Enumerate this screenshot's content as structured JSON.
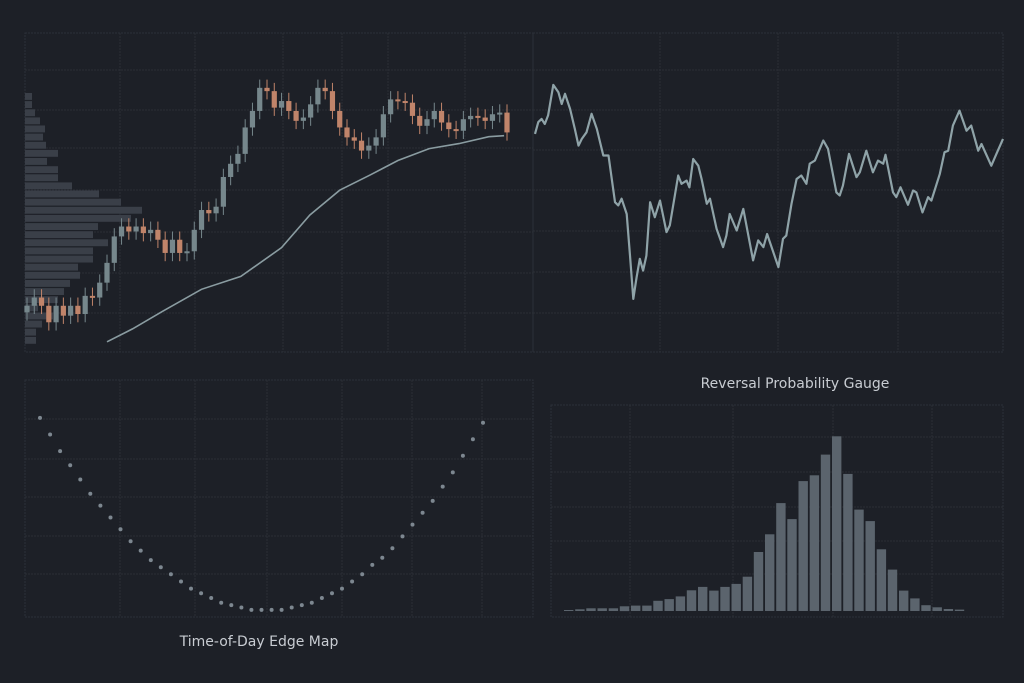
{
  "colors": {
    "background": "#1d2027",
    "grid": "#2a2e36",
    "up": "#76878c",
    "down": "#c0846a",
    "ma": "#8a9ca1",
    "profile": "#3a3f48",
    "line": "#8fa3a8",
    "hist": "#5b646d",
    "dots": "#7d8790",
    "text": "#c8ccd2"
  },
  "chart_data": [
    {
      "type": "candlestick",
      "title": "",
      "ylim": [
        0,
        96
      ],
      "candles": {
        "first_open": 12,
        "wick": 2.5,
        "close": [
          14,
          16.5,
          14,
          9,
          14,
          11,
          14,
          11.5,
          17,
          16.5,
          21,
          27,
          35,
          38,
          36.5,
          38,
          36,
          37,
          34,
          30,
          34,
          30,
          30.5,
          37,
          43,
          42,
          44,
          53,
          57,
          60,
          68,
          73,
          80,
          79,
          74,
          76,
          73,
          70,
          71,
          75,
          80,
          79,
          73,
          68,
          65,
          64,
          61,
          62.5,
          65,
          72,
          76.5,
          76,
          75.5,
          71.5,
          68.5,
          70.5,
          73,
          69.5,
          67.5,
          67,
          70.5,
          71.5,
          71,
          70,
          72,
          72.5,
          66.5
        ]
      },
      "moving_average": [
        [
          11,
          3.1
        ],
        [
          14.5,
          7
        ],
        [
          18.7,
          12.4
        ],
        [
          24,
          19
        ],
        [
          29.4,
          22.9
        ],
        [
          35,
          31.6
        ],
        [
          38.9,
          41.5
        ],
        [
          43,
          49
        ],
        [
          47.1,
          53.5
        ],
        [
          51,
          58
        ],
        [
          55.3,
          61.6
        ],
        [
          59.4,
          63.1
        ],
        [
          63.5,
          65.2
        ],
        [
          65.6,
          65.5
        ]
      ],
      "volume_profile": [
        7,
        7,
        10,
        15,
        20,
        18,
        21,
        33,
        22,
        33,
        33,
        47,
        74,
        96,
        117,
        106,
        73,
        68,
        83,
        68,
        68,
        53,
        55,
        45,
        39,
        33,
        13,
        28,
        17,
        11,
        11
      ]
    },
    {
      "type": "line",
      "title": "Reversal Probability Gauge",
      "xlim": [
        0,
        100
      ],
      "ylim": [
        0,
        100
      ],
      "points": [
        [
          0,
          68.6
        ],
        [
          0.7,
          72.3
        ],
        [
          1.4,
          73.3
        ],
        [
          2.1,
          71.7
        ],
        [
          2.8,
          74.4
        ],
        [
          3.9,
          84
        ],
        [
          5,
          81.7
        ],
        [
          5.7,
          78
        ],
        [
          6.4,
          81.2
        ],
        [
          7.5,
          76.4
        ],
        [
          8.5,
          70.2
        ],
        [
          9.3,
          64.9
        ],
        [
          10,
          67
        ],
        [
          11,
          69.1
        ],
        [
          12.1,
          74.9
        ],
        [
          13.2,
          70.2
        ],
        [
          14.6,
          61.8
        ],
        [
          15.7,
          61.8
        ],
        [
          17.1,
          47.1
        ],
        [
          17.8,
          46.1
        ],
        [
          18.5,
          48.2
        ],
        [
          19.6,
          43.4
        ],
        [
          20.3,
          30.3
        ],
        [
          21,
          16.7
        ],
        [
          21.7,
          23.5
        ],
        [
          22.4,
          29.3
        ],
        [
          23.1,
          25.6
        ],
        [
          23.8,
          30.3
        ],
        [
          24.6,
          47.1
        ],
        [
          25.6,
          42.4
        ],
        [
          26.7,
          47.6
        ],
        [
          28.1,
          37.7
        ],
        [
          28.8,
          39.8
        ],
        [
          30.6,
          55.5
        ],
        [
          31.3,
          52.9
        ],
        [
          32.4,
          53.9
        ],
        [
          33,
          51.8
        ],
        [
          33.8,
          60.7
        ],
        [
          34.9,
          58.6
        ],
        [
          35.6,
          54.4
        ],
        [
          36.7,
          46.6
        ],
        [
          37.4,
          48.2
        ],
        [
          38.8,
          38.7
        ],
        [
          40.2,
          33
        ],
        [
          40.9,
          36.6
        ],
        [
          41.6,
          43.4
        ],
        [
          43.1,
          38.2
        ],
        [
          44.5,
          45
        ],
        [
          46.6,
          28.8
        ],
        [
          47.7,
          35.1
        ],
        [
          48.8,
          33
        ],
        [
          49.6,
          37.1
        ],
        [
          52,
          26.7
        ],
        [
          53,
          35.6
        ],
        [
          53.7,
          36.6
        ],
        [
          54.8,
          46.6
        ],
        [
          55.9,
          54.4
        ],
        [
          56.9,
          55.5
        ],
        [
          58,
          52.9
        ],
        [
          58.7,
          59.2
        ],
        [
          59.8,
          60.2
        ],
        [
          61.6,
          66.5
        ],
        [
          62.6,
          63.9
        ],
        [
          64.4,
          50.2
        ],
        [
          65.1,
          49.2
        ],
        [
          65.8,
          52.3
        ],
        [
          67.1,
          62.3
        ],
        [
          68.7,
          55
        ],
        [
          69.4,
          56.5
        ],
        [
          70.8,
          63.3
        ],
        [
          72.2,
          56.5
        ],
        [
          73.3,
          60.2
        ],
        [
          74.4,
          59.2
        ],
        [
          74.9,
          62
        ],
        [
          76.5,
          50.2
        ],
        [
          77.2,
          48.7
        ],
        [
          78.1,
          51.8
        ],
        [
          79.7,
          46.3
        ],
        [
          80.8,
          50.8
        ],
        [
          81.5,
          50.2
        ],
        [
          82.8,
          43.9
        ],
        [
          84,
          48.7
        ],
        [
          84.7,
          47.6
        ],
        [
          86.5,
          56
        ],
        [
          87.5,
          62.8
        ],
        [
          88.3,
          63.3
        ],
        [
          89.3,
          71.2
        ],
        [
          90.7,
          75.9
        ],
        [
          92.2,
          69.6
        ],
        [
          93.2,
          71.2
        ],
        [
          94.7,
          63.3
        ],
        [
          95.4,
          65.4
        ],
        [
          97.5,
          58.6
        ],
        [
          98.6,
          62.3
        ],
        [
          100,
          67
        ]
      ]
    },
    {
      "type": "scatter",
      "title": "Time-of-Day Edge Map",
      "xlim": [
        0,
        1
      ],
      "ylim": [
        0,
        1
      ],
      "y": [
        0.84,
        0.77,
        0.7,
        0.64,
        0.58,
        0.52,
        0.47,
        0.42,
        0.37,
        0.32,
        0.28,
        0.24,
        0.21,
        0.18,
        0.15,
        0.12,
        0.1,
        0.08,
        0.06,
        0.05,
        0.04,
        0.03,
        0.03,
        0.03,
        0.03,
        0.04,
        0.05,
        0.06,
        0.08,
        0.1,
        0.12,
        0.15,
        0.18,
        0.22,
        0.25,
        0.29,
        0.34,
        0.39,
        0.44,
        0.49,
        0.55,
        0.61,
        0.68,
        0.75,
        0.82
      ]
    },
    {
      "type": "bar",
      "title": "",
      "ylim": [
        0,
        560
      ],
      "values": [
        3,
        5,
        8,
        8,
        8,
        14,
        16,
        16,
        30,
        35,
        43,
        61,
        71,
        60,
        71,
        80,
        101,
        174,
        226,
        318,
        271,
        383,
        400,
        461,
        515,
        404,
        299,
        265,
        182,
        122,
        60,
        37,
        17,
        11,
        6,
        4
      ]
    }
  ]
}
